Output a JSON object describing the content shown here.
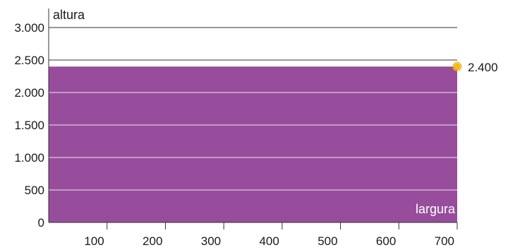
{
  "chart_data": {
    "type": "area",
    "xlabel": "largura",
    "ylabel": "altura",
    "xlim": [
      0,
      700
    ],
    "ylim": [
      0,
      3000
    ],
    "x_ticks": [
      100,
      200,
      300,
      400,
      500,
      600,
      700
    ],
    "x_tick_labels": [
      "100",
      "200",
      "300",
      "400",
      "500",
      "600",
      "700"
    ],
    "y_ticks": [
      0,
      500,
      1000,
      1500,
      2000,
      2500,
      3000
    ],
    "y_tick_labels": [
      "0",
      "500",
      "1.000",
      "1.500",
      "2.000",
      "2.500",
      "3.000"
    ],
    "x": [
      0,
      700
    ],
    "series": [
      {
        "values": [
          2400,
          2400
        ]
      }
    ],
    "point": {
      "x": 700,
      "y": 2400,
      "label": "2.400"
    },
    "grid": true,
    "fill_color": "#974d9c",
    "grid_color_outside": "#333333",
    "grid_color_inside": "#f0e4f1",
    "marker_color": "#f3b81f"
  }
}
